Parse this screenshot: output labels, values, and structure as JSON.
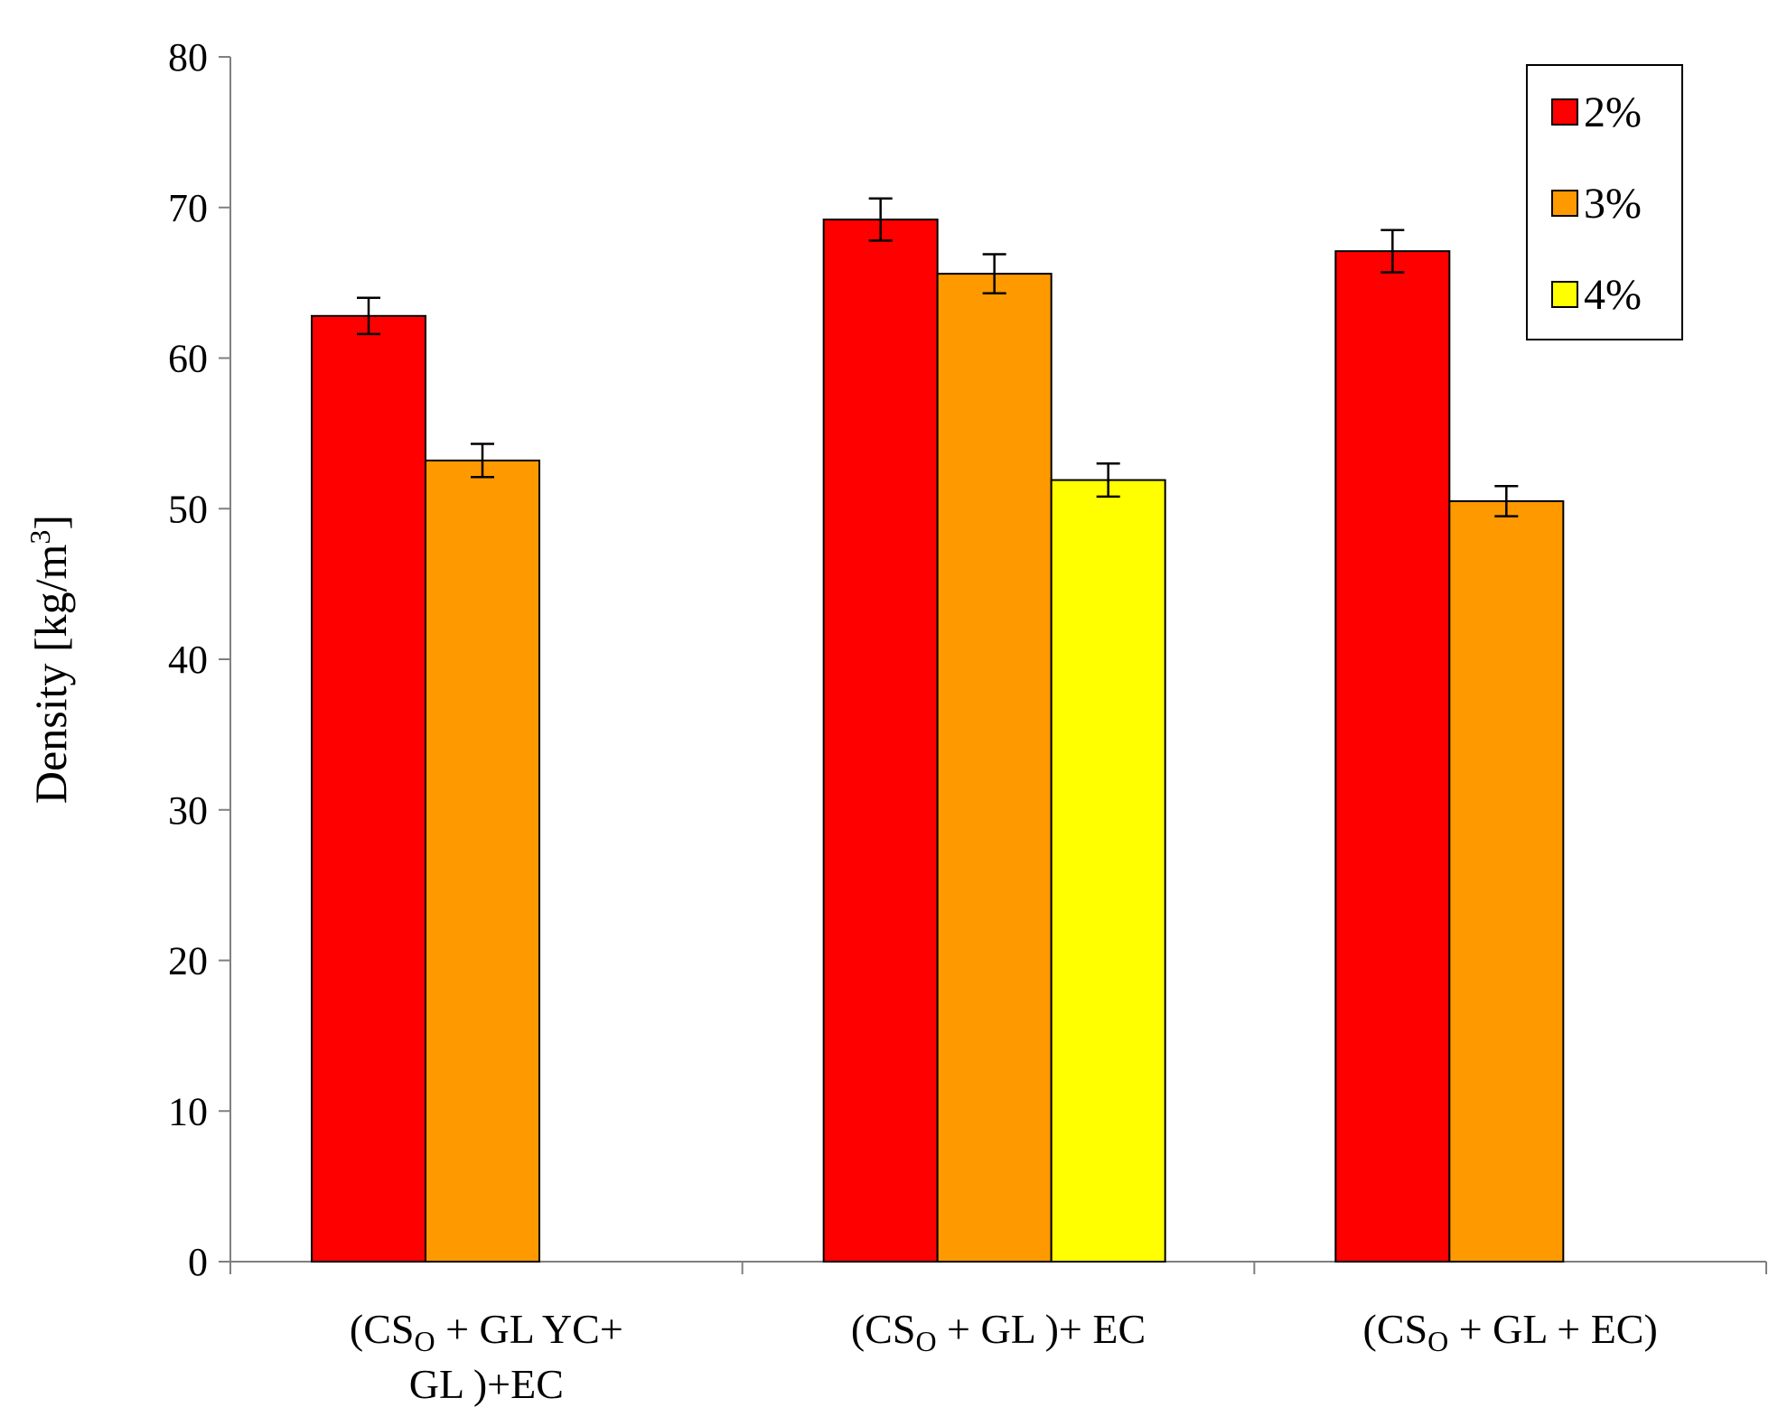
{
  "chart_data": {
    "type": "bar",
    "title": "",
    "xlabel": "",
    "ylabel": {
      "prefix": "Density [kg/m",
      "sup": "3",
      "suffix": "]"
    },
    "ylim": [
      0,
      80
    ],
    "yticks": [
      0,
      10,
      20,
      30,
      40,
      50,
      60,
      70,
      80
    ],
    "grid": false,
    "legend_position": "top-right",
    "categories": [
      {
        "lines": [
          [
            {
              "t": "(CS"
            },
            {
              "t": "O",
              "sub": true
            },
            {
              "t": " + GL YC+"
            }
          ],
          [
            {
              "t": "GL )+EC"
            }
          ]
        ]
      },
      {
        "lines": [
          [
            {
              "t": "(CS"
            },
            {
              "t": "O",
              "sub": true
            },
            {
              "t": " + GL )+ EC"
            }
          ]
        ]
      },
      {
        "lines": [
          [
            {
              "t": "(CS"
            },
            {
              "t": "O",
              "sub": true
            },
            {
              "t": " + GL + EC)"
            }
          ]
        ]
      }
    ],
    "series": [
      {
        "name": "2%",
        "color": "#ff0000",
        "values": [
          62.8,
          69.2,
          67.1
        ],
        "errors": [
          1.2,
          1.4,
          1.4
        ]
      },
      {
        "name": "3%",
        "color": "#ff9900",
        "values": [
          53.2,
          65.6,
          50.5
        ],
        "errors": [
          1.1,
          1.3,
          1.0
        ]
      },
      {
        "name": "4%",
        "color": "#ffff00",
        "values": [
          null,
          51.9,
          null
        ],
        "errors": [
          null,
          1.1,
          null
        ]
      }
    ]
  }
}
